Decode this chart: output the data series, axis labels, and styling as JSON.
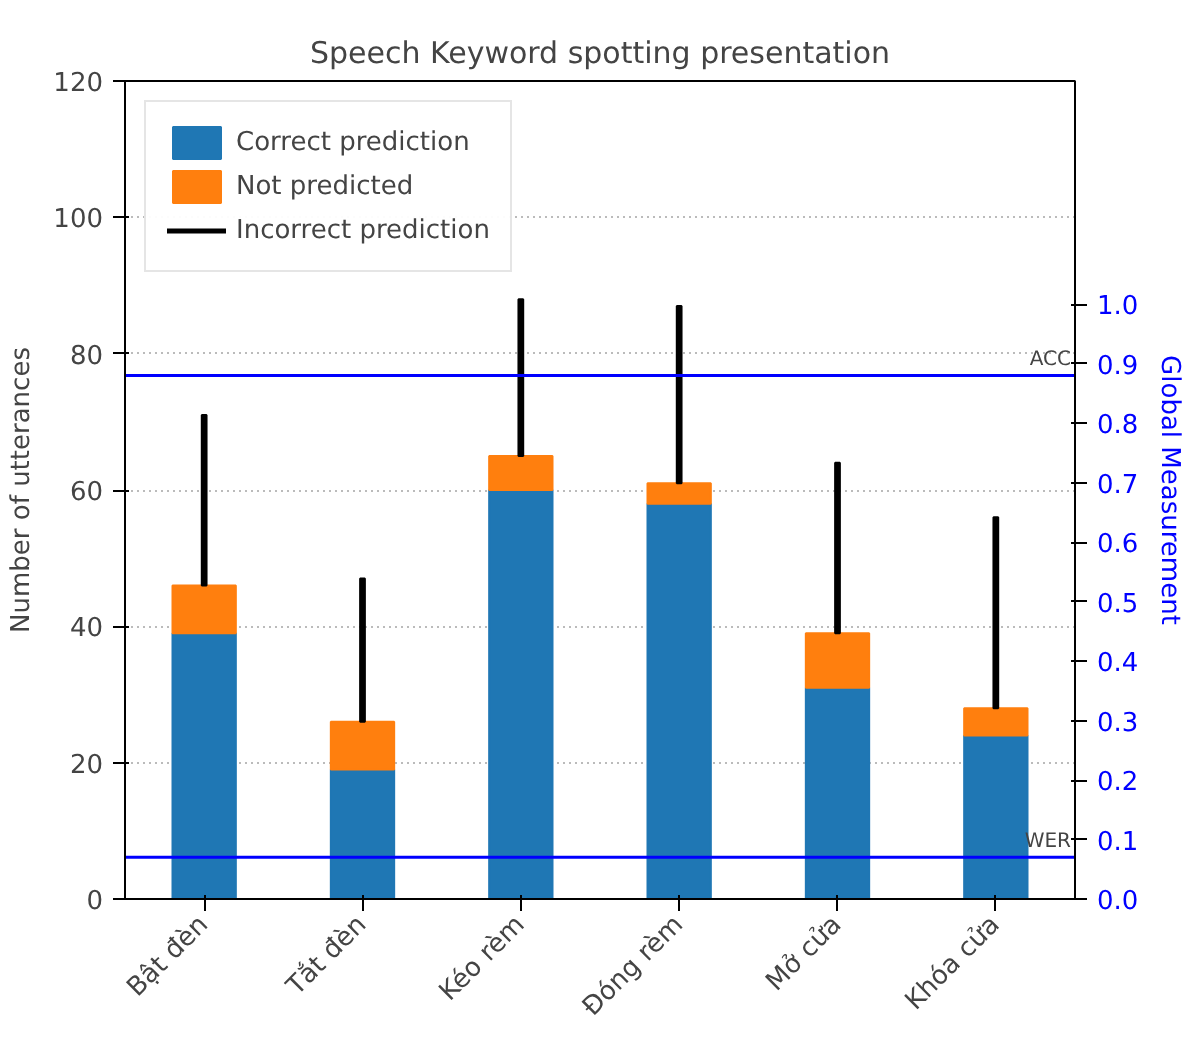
{
  "chart_data": {
    "type": "bar",
    "title": "Speech Keyword spotting presentation",
    "ylabel": "Number of utterances",
    "y2label": "Global Measurement",
    "categories": [
      "Bật đèn",
      "Tắt đèn",
      "Kéo rèm",
      "Đóng rèm",
      "Mở cửa",
      "Khóa cửa"
    ],
    "stacked": true,
    "series": [
      {
        "name": "Correct prediction",
        "color": "#1f77b4",
        "values": [
          39,
          19,
          60,
          58,
          31,
          24
        ]
      },
      {
        "name": "Not predicted",
        "color": "#ff7f0e",
        "values": [
          7,
          7,
          5,
          3,
          8,
          4
        ]
      },
      {
        "name": "Incorrect prediction",
        "color": "#000000",
        "line_style": "solid",
        "values": [
          25,
          21,
          23,
          26,
          25,
          28
        ]
      }
    ],
    "ylim": [
      0,
      120
    ],
    "yticks": [
      0,
      20,
      40,
      60,
      80,
      100,
      120
    ],
    "y2lim": [
      0,
      1.375
    ],
    "y2ticks": [
      {
        "value": 0,
        "label": "0.0"
      },
      0.1,
      0.2,
      0.3,
      0.4,
      0.5,
      0.6,
      0.7,
      0.8,
      0.9,
      {
        "value": 1,
        "label": "1.0"
      }
    ],
    "ref_lines": [
      {
        "axis": "y2",
        "value": 0.88,
        "label": "ACC",
        "color": "#0000ff"
      },
      {
        "axis": "y2",
        "value": 0.07,
        "label": "WER",
        "color": "#0000ff"
      }
    ],
    "grid": "y",
    "legend": "top left"
  }
}
